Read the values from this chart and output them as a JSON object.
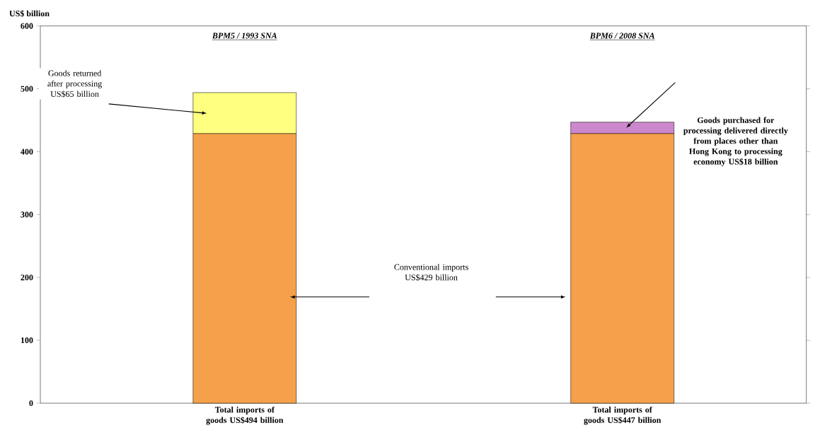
{
  "chart_data": {
    "type": "bar",
    "stacked": true,
    "ylabel": "US$ billion",
    "categories": [
      "Total imports of goods US$494 billion",
      "Total imports of goods US$447 billion"
    ],
    "series": [
      {
        "color": "#f5a04a",
        "values": [
          429,
          429
        ]
      },
      {
        "color": "#ffff80",
        "values": [
          65,
          null
        ]
      },
      {
        "color": "#cc88cc",
        "values": [
          null,
          18
        ]
      }
    ],
    "ylim": [
      0,
      600
    ],
    "yticks": [
      0,
      100,
      200,
      300,
      400,
      500,
      600
    ],
    "annotations": [
      "BPM5 / 1993 SNA",
      "BPM6 / 2008 SNA",
      "Goods returned after processing US$65 billion",
      "Goods purchased for processing delivered directly from places other than Hong Kong to processing economy US$18 billion",
      "Conventional imports US$429 billion"
    ]
  }
}
